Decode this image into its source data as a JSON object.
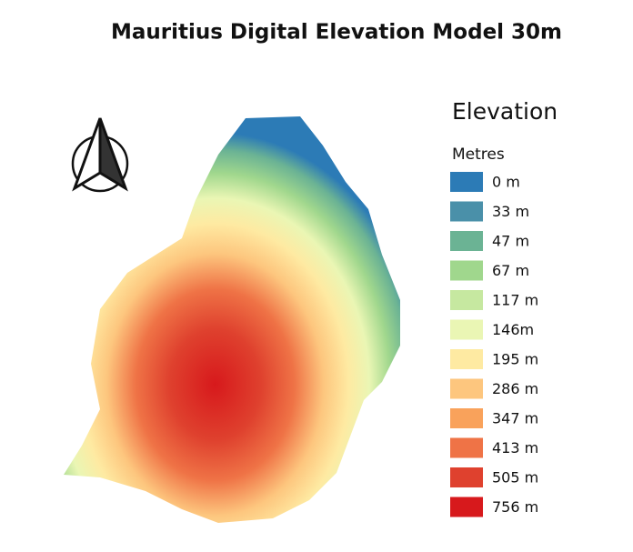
{
  "title": "Mauritius Digital Elevation Model 30m",
  "legend": {
    "title": "Elevation",
    "subtitle": "Metres",
    "items": [
      {
        "label": "0 m",
        "color": "#2c7bb6"
      },
      {
        "label": "33 m",
        "color": "#4a90a9"
      },
      {
        "label": "47 m",
        "color": "#6bb394"
      },
      {
        "label": "67 m",
        "color": "#a0d78d"
      },
      {
        "label": "117 m",
        "color": "#c6e8a0"
      },
      {
        "label": "146m",
        "color": "#eaf6b4"
      },
      {
        "label": "195 m",
        "color": "#feeaa2"
      },
      {
        "label": "286 m",
        "color": "#fdc67e"
      },
      {
        "label": "347 m",
        "color": "#f9a25b"
      },
      {
        "label": "413 m",
        "color": "#ef7346"
      },
      {
        "label": "505 m",
        "color": "#df412e"
      },
      {
        "label": "756 m",
        "color": "#d7191c"
      }
    ]
  }
}
